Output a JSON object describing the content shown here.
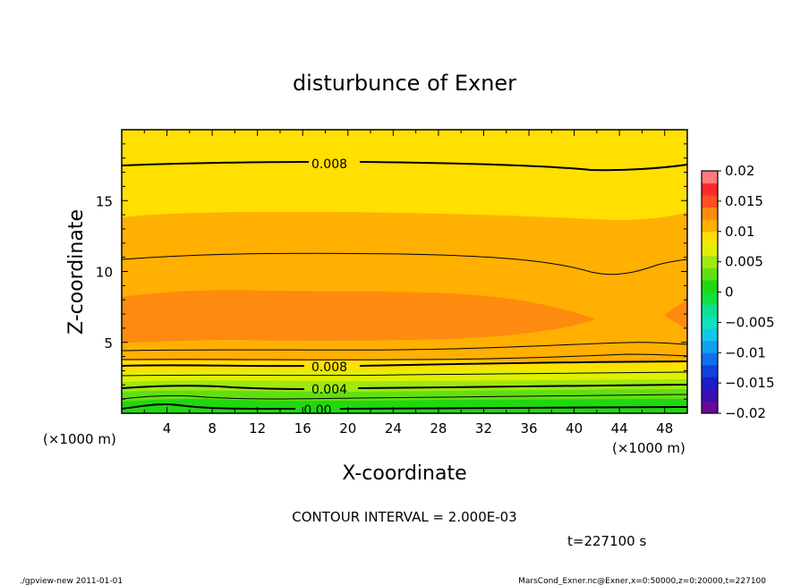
{
  "chart_data": {
    "type": "contour",
    "title": "disturbunce of Exner",
    "xlabel": "X-coordinate",
    "ylabel": "Z-coordinate",
    "xunit": "(×1000 m)",
    "yunit": "(×1000 m)",
    "xlim": [
      0,
      50
    ],
    "ylim": [
      0,
      20
    ],
    "xticks": [
      4,
      8,
      12,
      16,
      20,
      24,
      28,
      32,
      36,
      40,
      44,
      48
    ],
    "yticks": [
      5,
      10,
      15
    ],
    "contour_interval_text": "CONTOUR INTERVAL = 2.000E-03",
    "time_text": "t=227100 s",
    "contour_labels": [
      {
        "text": "0.008",
        "x": 18.5,
        "z": 17.6
      },
      {
        "text": "0.008",
        "x": 18.5,
        "z": 3.3
      },
      {
        "text": "0.004",
        "x": 18.5,
        "z": 1.7
      },
      {
        "text": "0.00",
        "x": 17.5,
        "z": 0.3
      }
    ],
    "colorbar": {
      "tick_labels": [
        "0.02",
        "0.015",
        "0.01",
        "0.005",
        "0",
        "−0.005",
        "−0.01",
        "−0.015",
        "−0.02"
      ],
      "levels": [
        -0.02,
        -0.018,
        -0.016,
        -0.014,
        -0.012,
        -0.01,
        -0.008,
        -0.006,
        -0.004,
        -0.002,
        0,
        0.002,
        0.004,
        0.006,
        0.008,
        0.01,
        0.012,
        0.014,
        0.016,
        0.018,
        0.02
      ],
      "colors": [
        "#6a0a9a",
        "#3a10b0",
        "#1c1cc8",
        "#1040e0",
        "#1070f0",
        "#10a0f0",
        "#10c8e8",
        "#10e0c0",
        "#10e090",
        "#10e040",
        "#20d810",
        "#60e010",
        "#a0e810",
        "#e0f000",
        "#ffe000",
        "#ffb000",
        "#ff8a10",
        "#ff5020",
        "#ff2a2a",
        "#ff7a7a"
      ]
    }
  },
  "footer": {
    "left": "./gpview-new   2011-01-01",
    "right": "MarsCond_Exner.nc@Exner,x=0:50000,z=0:20000,t=227100"
  }
}
